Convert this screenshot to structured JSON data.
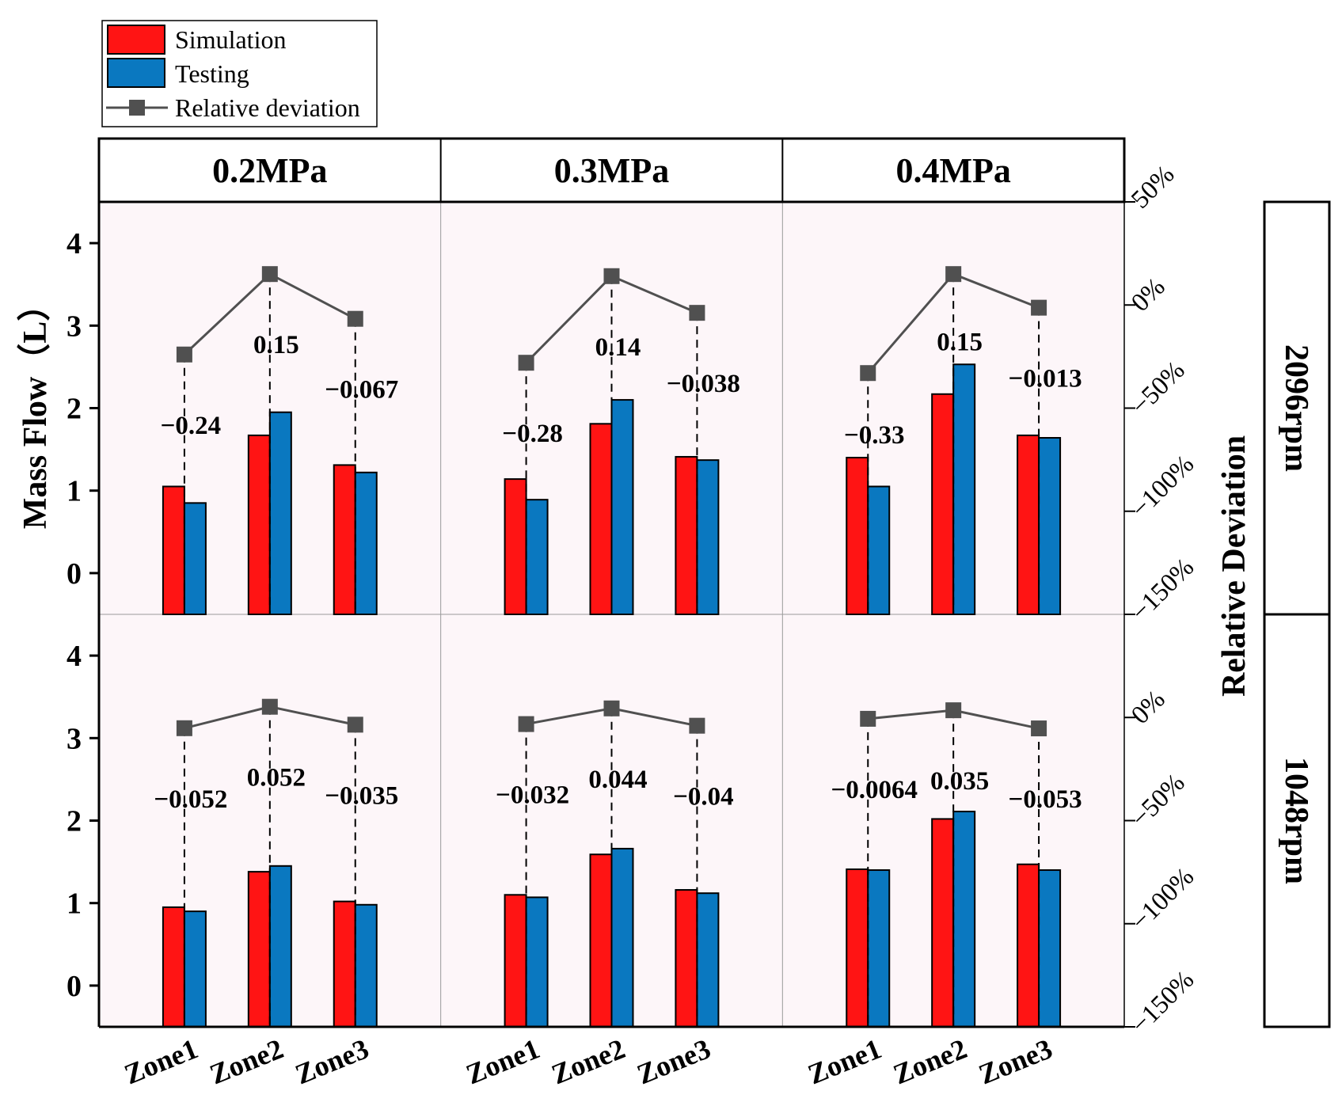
{
  "chart_data": {
    "type": "bar",
    "ylabel": "Mass Flow（L）",
    "y2label": "Relative Deviation",
    "ylim": [
      -0.5,
      4.5
    ],
    "y2lim": [
      -150,
      50
    ],
    "yticks": [
      "0",
      "1",
      "2",
      "3",
      "4"
    ],
    "y2ticks_top": [
      "50%",
      "0%",
      "-50%",
      "-100%",
      "-150%"
    ],
    "y2ticks_bottom": [
      "0%",
      "-50%",
      "-100%",
      "-150%"
    ],
    "legend": {
      "position": "top-left",
      "entries": [
        "Simulation",
        "Testing",
        "Relative deviation"
      ]
    },
    "colors": {
      "simulation": "#ff1414",
      "testing": "#0a78c0",
      "deviation": "#505050",
      "panel_bg": "#fdf6f9"
    },
    "columns": [
      "0.2MPa",
      "0.3MPa",
      "0.4MPa"
    ],
    "rows": [
      "2096rpm",
      "1048rpm"
    ],
    "categories": [
      "Zone1",
      "Zone2",
      "Zone3"
    ],
    "panels": [
      {
        "column": "0.2MPa",
        "row": "2096rpm",
        "simulation": [
          1.05,
          1.67,
          1.31
        ],
        "testing": [
          0.85,
          1.95,
          1.22
        ],
        "deviation_pct": [
          -24,
          15,
          -6.7
        ],
        "labels": [
          "−0.24",
          "0.15",
          "−0.067"
        ]
      },
      {
        "column": "0.3MPa",
        "row": "2096rpm",
        "simulation": [
          1.14,
          1.81,
          1.41
        ],
        "testing": [
          0.89,
          2.1,
          1.37
        ],
        "deviation_pct": [
          -28,
          14,
          -3.8
        ],
        "labels": [
          "−0.28",
          "0.14",
          "−0.038"
        ]
      },
      {
        "column": "0.4MPa",
        "row": "2096rpm",
        "simulation": [
          1.4,
          2.17,
          1.67
        ],
        "testing": [
          1.05,
          2.53,
          1.64
        ],
        "deviation_pct": [
          -33,
          15,
          -1.3
        ],
        "labels": [
          "−0.33",
          "0.15",
          "−0.013"
        ]
      },
      {
        "column": "0.2MPa",
        "row": "1048rpm",
        "simulation": [
          0.95,
          1.38,
          1.02
        ],
        "testing": [
          0.9,
          1.45,
          0.98
        ],
        "deviation_pct": [
          -5.2,
          5.2,
          -3.5
        ],
        "labels": [
          "−0.052",
          "0.052",
          "−0.035"
        ]
      },
      {
        "column": "0.3MPa",
        "row": "1048rpm",
        "simulation": [
          1.1,
          1.59,
          1.16
        ],
        "testing": [
          1.07,
          1.66,
          1.12
        ],
        "deviation_pct": [
          -3.2,
          4.4,
          -4.0
        ],
        "labels": [
          "−0.032",
          "0.044",
          "−0.04"
        ]
      },
      {
        "column": "0.4MPa",
        "row": "1048rpm",
        "simulation": [
          1.41,
          2.02,
          1.47
        ],
        "testing": [
          1.4,
          2.11,
          1.4
        ],
        "deviation_pct": [
          -0.64,
          3.5,
          -5.3
        ],
        "labels": [
          "−0.0064",
          "0.035",
          "−0.053"
        ]
      }
    ]
  }
}
